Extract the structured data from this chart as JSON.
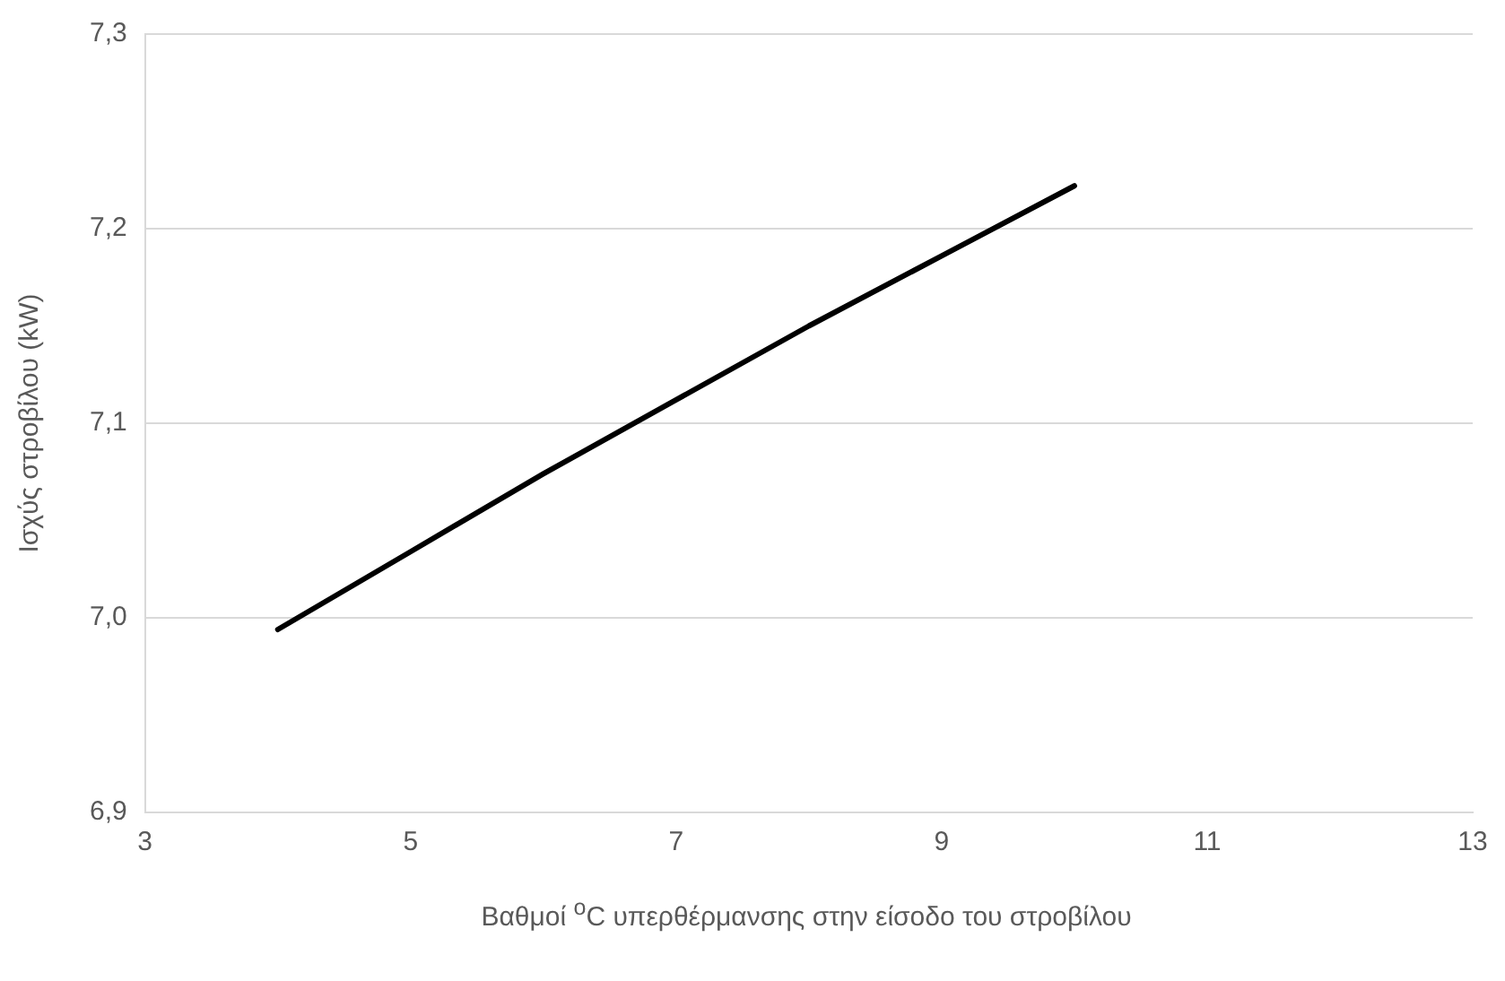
{
  "chart_data": {
    "type": "line",
    "xlabel": "Βαθμοί $^{o}$C υπερθέρμανσης στην είσοδο του στροβίλου",
    "ylabel": "Ισχύς στροβίλου (kW)",
    "x": [
      4,
      5,
      6,
      7,
      8,
      9,
      10
    ],
    "series": [
      {
        "color": "#000000",
        "values": [
          6.994,
          7.034,
          7.074,
          7.112,
          7.15,
          7.186,
          7.222
        ]
      }
    ],
    "xlim": [
      3,
      13
    ],
    "xticks": [
      3,
      5,
      7,
      9,
      11,
      13
    ],
    "ylim": [
      6.9,
      7.3
    ],
    "yticks": [
      {
        "value": 6.9,
        "label": "6,9"
      },
      {
        "value": 7.0,
        "label": "7,0"
      },
      {
        "value": 7.1,
        "label": "7,1"
      },
      {
        "value": 7.2,
        "label": "7,2"
      },
      {
        "value": 7.3,
        "label": "7,3"
      }
    ],
    "grid": "y",
    "marker": "none",
    "line_style": "solid",
    "legend": false
  }
}
